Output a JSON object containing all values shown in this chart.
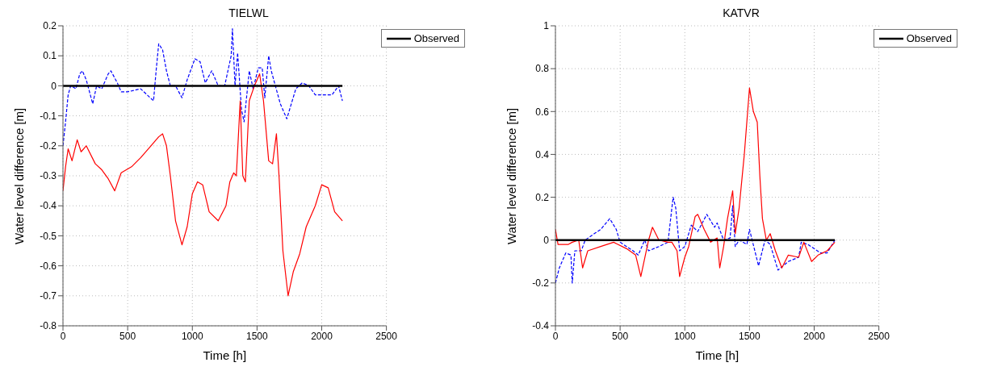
{
  "chart_data": [
    {
      "type": "line",
      "title": "TIELWL",
      "xlabel": "Time [h]",
      "ylabel": "Water level difference [m]",
      "xlim": [
        0,
        2500
      ],
      "xticks": [
        0,
        500,
        1000,
        1500,
        2000,
        2500
      ],
      "ylim": [
        -0.8,
        0.2
      ],
      "yticks": [
        -0.8,
        -0.7,
        -0.6,
        -0.5,
        -0.4,
        -0.3,
        -0.2,
        -0.1,
        0,
        0.1,
        0.2
      ],
      "grid": true,
      "legend": "top right",
      "series": [
        {
          "color": "#0000ff",
          "line_style": "dashed",
          "x": [
            0,
            20,
            40,
            60,
            100,
            130,
            150,
            180,
            230,
            260,
            300,
            350,
            370,
            420,
            450,
            500,
            600,
            650,
            700,
            720,
            740,
            770,
            800,
            830,
            870,
            920,
            960,
            1020,
            1060,
            1100,
            1150,
            1200,
            1250,
            1300,
            1310,
            1330,
            1350,
            1380,
            1400,
            1440,
            1470,
            1510,
            1540,
            1560,
            1590,
            1610,
            1680,
            1730,
            1800,
            1850,
            1900,
            1950,
            2000,
            2080,
            2130,
            2160
          ],
          "values": [
            -0.2,
            -0.12,
            -0.03,
            0.0,
            -0.01,
            0.04,
            0.05,
            0.02,
            -0.06,
            0.0,
            -0.01,
            0.04,
            0.05,
            0.01,
            -0.02,
            -0.02,
            -0.01,
            -0.03,
            -0.05,
            0.05,
            0.14,
            0.12,
            0.05,
            0.0,
            0.0,
            -0.04,
            0.02,
            0.09,
            0.08,
            0.01,
            0.05,
            0.0,
            0.0,
            0.1,
            0.19,
            0.0,
            0.11,
            -0.08,
            -0.12,
            0.05,
            -0.01,
            0.06,
            0.06,
            -0.04,
            0.1,
            0.05,
            -0.06,
            -0.11,
            -0.01,
            0.01,
            0.0,
            -0.03,
            -0.03,
            -0.03,
            0.0,
            -0.05
          ]
        },
        {
          "color": "#ff0000",
          "line_style": "solid",
          "x": [
            0,
            20,
            40,
            70,
            110,
            140,
            180,
            250,
            300,
            350,
            400,
            450,
            530,
            600,
            680,
            740,
            770,
            800,
            830,
            870,
            920,
            960,
            1000,
            1040,
            1080,
            1130,
            1200,
            1260,
            1290,
            1320,
            1340,
            1370,
            1390,
            1410,
            1440,
            1480,
            1520,
            1550,
            1590,
            1620,
            1650,
            1670,
            1700,
            1740,
            1780,
            1830,
            1880,
            1950,
            2000,
            2050,
            2100,
            2160
          ],
          "values": [
            -0.35,
            -0.27,
            -0.21,
            -0.25,
            -0.18,
            -0.22,
            -0.2,
            -0.26,
            -0.28,
            -0.31,
            -0.35,
            -0.29,
            -0.27,
            -0.24,
            -0.2,
            -0.17,
            -0.16,
            -0.2,
            -0.3,
            -0.45,
            -0.53,
            -0.47,
            -0.36,
            -0.32,
            -0.33,
            -0.42,
            -0.45,
            -0.4,
            -0.32,
            -0.29,
            -0.3,
            -0.05,
            -0.3,
            -0.32,
            -0.05,
            0.0,
            0.04,
            -0.05,
            -0.25,
            -0.26,
            -0.16,
            -0.3,
            -0.55,
            -0.7,
            -0.62,
            -0.56,
            -0.47,
            -0.4,
            -0.33,
            -0.34,
            -0.42,
            -0.45
          ]
        },
        {
          "name": "Observed",
          "color": "#000000",
          "line_style": "solid",
          "x": [
            0,
            2160
          ],
          "values": [
            0,
            0
          ]
        }
      ]
    },
    {
      "type": "line",
      "title": "KATVR",
      "xlabel": "Time [h]",
      "ylabel": "Water level difference [m]",
      "xlim": [
        0,
        2500
      ],
      "xticks": [
        0,
        500,
        1000,
        1500,
        2000,
        2500
      ],
      "ylim": [
        -0.4,
        1
      ],
      "yticks": [
        -0.4,
        -0.2,
        0,
        0.2,
        0.4,
        0.6,
        0.8,
        1
      ],
      "grid": true,
      "legend": "top right",
      "series": [
        {
          "color": "#0000ff",
          "line_style": "dashed",
          "x": [
            0,
            30,
            80,
            120,
            130,
            150,
            200,
            230,
            300,
            350,
            420,
            470,
            500,
            600,
            640,
            690,
            720,
            800,
            870,
            900,
            910,
            930,
            960,
            1000,
            1050,
            1100,
            1170,
            1230,
            1250,
            1300,
            1350,
            1370,
            1390,
            1420,
            1480,
            1500,
            1570,
            1620,
            1660,
            1720,
            1800,
            1880,
            1900,
            1950,
            2000,
            2050,
            2100,
            2160
          ],
          "values": [
            -0.2,
            -0.13,
            -0.06,
            -0.07,
            -0.2,
            -0.05,
            -0.05,
            0.0,
            0.03,
            0.05,
            0.1,
            0.05,
            -0.01,
            -0.05,
            -0.07,
            0.0,
            -0.05,
            -0.03,
            -0.01,
            0.15,
            0.2,
            0.15,
            -0.05,
            -0.03,
            0.07,
            0.04,
            0.12,
            0.06,
            0.08,
            0.0,
            0.01,
            0.16,
            -0.03,
            0.0,
            -0.02,
            0.05,
            -0.12,
            0.0,
            -0.02,
            -0.14,
            -0.1,
            -0.08,
            -0.01,
            -0.02,
            -0.04,
            -0.06,
            -0.06,
            0.0
          ]
        },
        {
          "color": "#ff0000",
          "line_style": "solid",
          "x": [
            0,
            20,
            100,
            130,
            180,
            210,
            250,
            350,
            450,
            550,
            620,
            660,
            720,
            750,
            800,
            870,
            900,
            940,
            960,
            1000,
            1030,
            1080,
            1100,
            1150,
            1200,
            1250,
            1270,
            1300,
            1330,
            1370,
            1390,
            1420,
            1460,
            1500,
            1530,
            1560,
            1580,
            1600,
            1630,
            1660,
            1700,
            1750,
            1800,
            1880,
            1920,
            1980,
            2030,
            2100,
            2160
          ],
          "values": [
            0.05,
            -0.02,
            -0.02,
            -0.01,
            0.0,
            -0.13,
            -0.05,
            -0.03,
            -0.01,
            -0.04,
            -0.07,
            -0.17,
            0.0,
            0.06,
            0.0,
            -0.01,
            -0.01,
            -0.05,
            -0.17,
            -0.08,
            -0.03,
            0.11,
            0.12,
            0.05,
            -0.01,
            0.01,
            -0.13,
            -0.03,
            0.1,
            0.23,
            0.03,
            0.15,
            0.4,
            0.71,
            0.6,
            0.55,
            0.3,
            0.1,
            0.0,
            0.03,
            -0.05,
            -0.13,
            -0.07,
            -0.08,
            -0.01,
            -0.1,
            -0.07,
            -0.05,
            -0.01
          ]
        },
        {
          "name": "Observed",
          "color": "#000000",
          "line_style": "solid",
          "x": [
            0,
            2160
          ],
          "values": [
            0,
            0
          ]
        }
      ]
    }
  ]
}
